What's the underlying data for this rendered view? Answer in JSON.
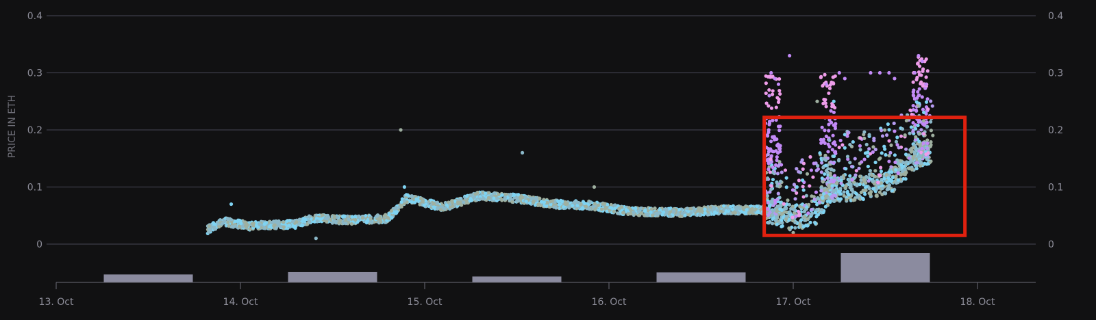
{
  "chart_data": {
    "type": "scatter",
    "ylabel": "PRICE IN ETH",
    "xlabel": "",
    "ylim": [
      0,
      0.4
    ],
    "yticks": [
      0,
      0.1,
      0.2,
      0.3,
      0.4
    ],
    "ytick_labels": [
      "0",
      "0.1",
      "0.2",
      "0.3",
      "0.4"
    ],
    "xlim": [
      13.0,
      18.3
    ],
    "xticks": [
      13,
      14,
      15,
      16,
      17,
      18
    ],
    "xtick_labels": [
      "13. Oct",
      "14. Oct",
      "15. Oct",
      "16. Oct",
      "17. Oct",
      "18. Oct"
    ],
    "grid": true,
    "point_colors": [
      "#7fd3f2",
      "#8bb8c8",
      "#9fb0a0",
      "#b59af0",
      "#c38af7",
      "#ee9ce9"
    ],
    "price_trend": [
      {
        "x": 13.82,
        "y": 0.025
      },
      {
        "x": 13.9,
        "y": 0.04
      },
      {
        "x": 14.05,
        "y": 0.032
      },
      {
        "x": 14.3,
        "y": 0.035
      },
      {
        "x": 14.4,
        "y": 0.045
      },
      {
        "x": 14.6,
        "y": 0.042
      },
      {
        "x": 14.8,
        "y": 0.045
      },
      {
        "x": 14.9,
        "y": 0.08
      },
      {
        "x": 15.1,
        "y": 0.065
      },
      {
        "x": 15.3,
        "y": 0.085
      },
      {
        "x": 15.5,
        "y": 0.08
      },
      {
        "x": 15.7,
        "y": 0.07
      },
      {
        "x": 15.9,
        "y": 0.068
      },
      {
        "x": 16.1,
        "y": 0.058
      },
      {
        "x": 16.4,
        "y": 0.055
      },
      {
        "x": 16.6,
        "y": 0.06
      },
      {
        "x": 16.85,
        "y": 0.06
      },
      {
        "x": 17.0,
        "y": 0.045
      },
      {
        "x": 17.12,
        "y": 0.055
      },
      {
        "x": 17.2,
        "y": 0.095
      },
      {
        "x": 17.4,
        "y": 0.1
      },
      {
        "x": 17.55,
        "y": 0.115
      },
      {
        "x": 17.65,
        "y": 0.15
      },
      {
        "x": 17.75,
        "y": 0.16
      }
    ],
    "outliers": [
      {
        "x": 13.95,
        "y": 0.07
      },
      {
        "x": 14.41,
        "y": 0.01
      },
      {
        "x": 14.87,
        "y": 0.2
      },
      {
        "x": 14.89,
        "y": 0.1
      },
      {
        "x": 15.53,
        "y": 0.16
      },
      {
        "x": 15.92,
        "y": 0.1
      },
      {
        "x": 16.88,
        "y": 0.3
      },
      {
        "x": 16.9,
        "y": 0.29
      },
      {
        "x": 16.92,
        "y": 0.28
      },
      {
        "x": 16.87,
        "y": 0.26
      },
      {
        "x": 16.98,
        "y": 0.33
      },
      {
        "x": 17.13,
        "y": 0.25
      },
      {
        "x": 17.18,
        "y": 0.28
      },
      {
        "x": 17.25,
        "y": 0.3
      },
      {
        "x": 17.28,
        "y": 0.29
      },
      {
        "x": 17.22,
        "y": 0.25
      },
      {
        "x": 17.42,
        "y": 0.3
      },
      {
        "x": 17.47,
        "y": 0.3
      },
      {
        "x": 17.52,
        "y": 0.3
      },
      {
        "x": 17.55,
        "y": 0.29
      },
      {
        "x": 17.68,
        "y": 0.33
      },
      {
        "x": 17.7,
        "y": 0.32
      },
      {
        "x": 17.66,
        "y": 0.3
      },
      {
        "x": 17.72,
        "y": 0.28
      },
      {
        "x": 17.68,
        "y": 0.26
      },
      {
        "x": 17.75,
        "y": 0.22
      },
      {
        "x": 17.0,
        "y": 0.02
      },
      {
        "x": 17.02,
        "y": 0.1
      }
    ],
    "spike_regions": [
      {
        "x": 16.89,
        "min": 0.05,
        "max": 0.3
      },
      {
        "x": 17.19,
        "min": 0.08,
        "max": 0.3
      },
      {
        "x": 17.69,
        "min": 0.14,
        "max": 0.33
      }
    ],
    "volume": {
      "categories": [
        "13. Oct",
        "14. Oct",
        "15. Oct",
        "16. Oct",
        "17. Oct"
      ],
      "values": [
        0.27,
        0.35,
        0.2,
        0.34,
        1.0
      ]
    },
    "highlight": {
      "x0": 16.85,
      "x1": 17.85,
      "y0": 0.02,
      "y1": 0.222
    },
    "highlight_color": "#e0210f",
    "volume_color": "#8b8b9f"
  }
}
